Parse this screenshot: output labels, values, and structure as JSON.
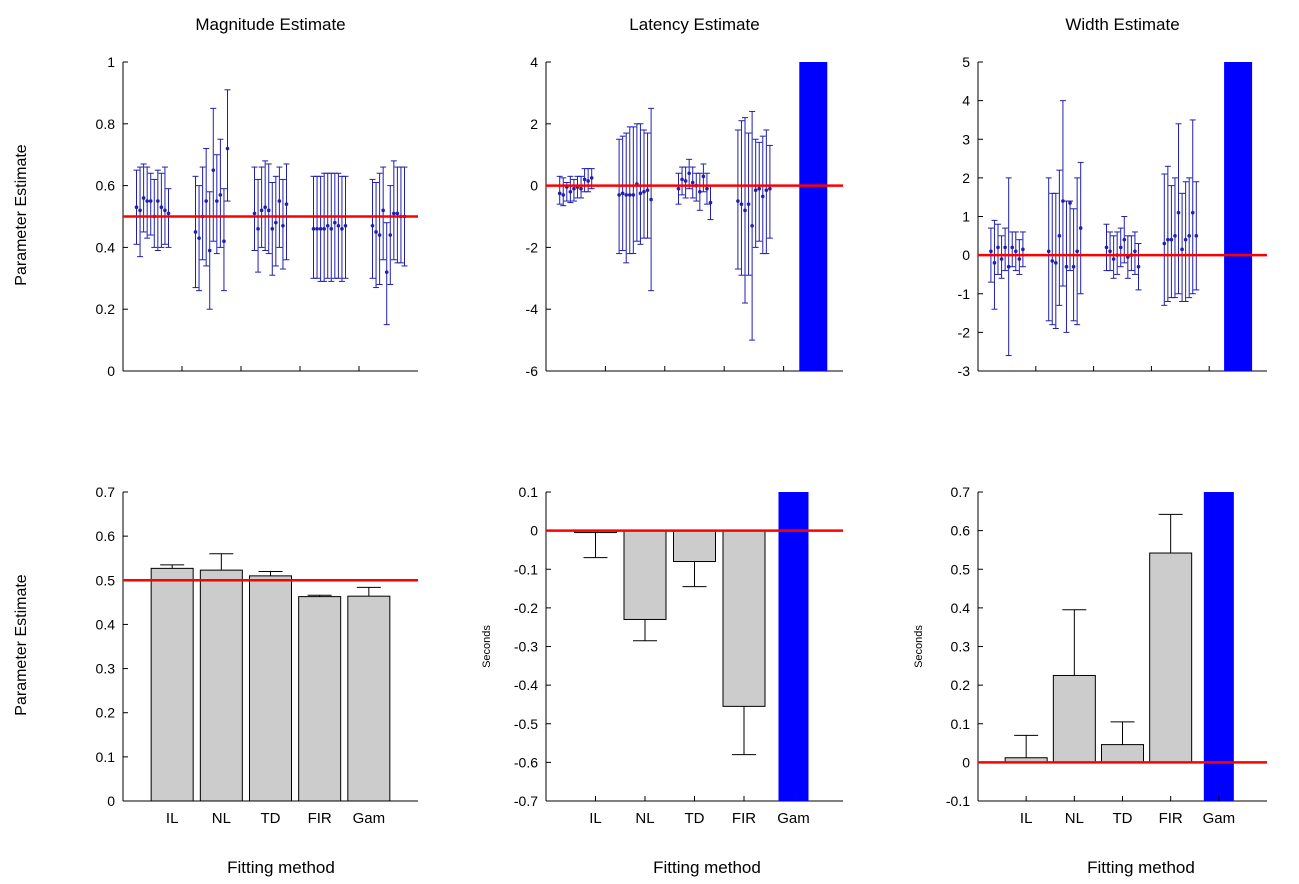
{
  "figure": {
    "row_ylabels": [
      "Parameter Estimate",
      "Parameter Estimate"
    ],
    "column_xlabels": [
      "Fitting method",
      "Fitting method",
      "Fitting method"
    ]
  },
  "colors": {
    "reference_line": "#ff0000",
    "errorbar": "#2020b0",
    "bar": "#cccccc",
    "gam_bar": "#0000ff",
    "axis": "#000000"
  },
  "chart_data": [
    {
      "type": "scatter",
      "title": "Magnitude Estimate",
      "ylim": [
        0,
        1
      ],
      "yticks": [
        0,
        0.2,
        0.4,
        0.6,
        0.8,
        1
      ],
      "ytick_labels": [
        "0",
        "0.2",
        "0.4",
        "0.6",
        "0.8",
        "1"
      ],
      "reference_y": 0.5,
      "groups": [
        {
          "center": 1,
          "points": [
            {
              "y": 0.53,
              "lo": 0.41,
              "hi": 0.65
            },
            {
              "y": 0.52,
              "lo": 0.37,
              "hi": 0.66
            },
            {
              "y": 0.56,
              "lo": 0.45,
              "hi": 0.67
            },
            {
              "y": 0.55,
              "lo": 0.43,
              "hi": 0.66
            },
            {
              "y": 0.55,
              "lo": 0.44,
              "hi": 0.64
            },
            {
              "y": 0.5,
              "lo": 0.4,
              "hi": 0.62
            },
            {
              "y": 0.55,
              "lo": 0.39,
              "hi": 0.65
            },
            {
              "y": 0.53,
              "lo": 0.4,
              "hi": 0.64
            },
            {
              "y": 0.52,
              "lo": 0.41,
              "hi": 0.66
            },
            {
              "y": 0.51,
              "lo": 0.4,
              "hi": 0.59
            }
          ]
        },
        {
          "center": 2,
          "points": [
            {
              "y": 0.45,
              "lo": 0.27,
              "hi": 0.63
            },
            {
              "y": 0.43,
              "lo": 0.26,
              "hi": 0.6
            },
            {
              "y": 0.5,
              "lo": 0.36,
              "hi": 0.66
            },
            {
              "y": 0.55,
              "lo": 0.34,
              "hi": 0.72
            },
            {
              "y": 0.39,
              "lo": 0.2,
              "hi": 0.58
            },
            {
              "y": 0.65,
              "lo": 0.42,
              "hi": 0.85
            },
            {
              "y": 0.55,
              "lo": 0.38,
              "hi": 0.7
            },
            {
              "y": 0.57,
              "lo": 0.4,
              "hi": 0.75
            },
            {
              "y": 0.42,
              "lo": 0.26,
              "hi": 0.59
            },
            {
              "y": 0.72,
              "lo": 0.55,
              "hi": 0.91
            }
          ]
        },
        {
          "center": 3,
          "points": [
            {
              "y": 0.51,
              "lo": 0.39,
              "hi": 0.66
            },
            {
              "y": 0.46,
              "lo": 0.32,
              "hi": 0.62
            },
            {
              "y": 0.52,
              "lo": 0.4,
              "hi": 0.66
            },
            {
              "y": 0.53,
              "lo": 0.39,
              "hi": 0.68
            },
            {
              "y": 0.52,
              "lo": 0.38,
              "hi": 0.67
            },
            {
              "y": 0.46,
              "lo": 0.31,
              "hi": 0.61
            },
            {
              "y": 0.48,
              "lo": 0.34,
              "hi": 0.63
            },
            {
              "y": 0.55,
              "lo": 0.4,
              "hi": 0.66
            },
            {
              "y": 0.47,
              "lo": 0.33,
              "hi": 0.62
            },
            {
              "y": 0.54,
              "lo": 0.36,
              "hi": 0.67
            }
          ]
        },
        {
          "center": 4,
          "points": [
            {
              "y": 0.46,
              "lo": 0.3,
              "hi": 0.63
            },
            {
              "y": 0.46,
              "lo": 0.3,
              "hi": 0.63
            },
            {
              "y": 0.46,
              "lo": 0.29,
              "hi": 0.63
            },
            {
              "y": 0.46,
              "lo": 0.29,
              "hi": 0.64
            },
            {
              "y": 0.47,
              "lo": 0.3,
              "hi": 0.64
            },
            {
              "y": 0.46,
              "lo": 0.29,
              "hi": 0.64
            },
            {
              "y": 0.48,
              "lo": 0.3,
              "hi": 0.64
            },
            {
              "y": 0.47,
              "lo": 0.3,
              "hi": 0.64
            },
            {
              "y": 0.46,
              "lo": 0.29,
              "hi": 0.63
            },
            {
              "y": 0.47,
              "lo": 0.3,
              "hi": 0.63
            }
          ]
        },
        {
          "center": 5,
          "points": [
            {
              "y": 0.47,
              "lo": 0.3,
              "hi": 0.62
            },
            {
              "y": 0.45,
              "lo": 0.27,
              "hi": 0.61
            },
            {
              "y": 0.44,
              "lo": 0.28,
              "hi": 0.64
            },
            {
              "y": 0.52,
              "lo": 0.36,
              "hi": 0.66
            },
            {
              "y": 0.32,
              "lo": 0.15,
              "hi": 0.48
            },
            {
              "y": 0.44,
              "lo": 0.28,
              "hi": 0.6
            },
            {
              "y": 0.51,
              "lo": 0.36,
              "hi": 0.68
            },
            {
              "y": 0.51,
              "lo": 0.35,
              "hi": 0.66
            },
            {
              "y": 0.5,
              "lo": 0.35,
              "hi": 0.66
            },
            {
              "y": 0.5,
              "lo": 0.34,
              "hi": 0.66
            }
          ]
        }
      ]
    },
    {
      "type": "scatter",
      "title": "Latency Estimate",
      "ylim": [
        -6,
        4
      ],
      "yticks": [
        -6,
        -4,
        -2,
        0,
        2,
        4
      ],
      "ytick_labels": [
        "-6",
        "-4",
        "-2",
        "0",
        "2",
        "4"
      ],
      "reference_y": 0,
      "gam_bar": {
        "from": -6,
        "to": 4
      },
      "groups": [
        {
          "center": 1,
          "points": [
            {
              "y": -0.25,
              "lo": -0.6,
              "hi": 0.3
            },
            {
              "y": -0.3,
              "lo": -0.65,
              "hi": 0.25
            },
            {
              "y": -0.05,
              "lo": -0.5,
              "hi": 0.1
            },
            {
              "y": -0.2,
              "lo": -0.55,
              "hi": 0.3
            },
            {
              "y": -0.1,
              "lo": -0.5,
              "hi": 0.2
            },
            {
              "y": -0.05,
              "lo": -0.4,
              "hi": 0.3
            },
            {
              "y": -0.1,
              "lo": -0.4,
              "hi": 0.3
            },
            {
              "y": 0.2,
              "lo": -0.2,
              "hi": 0.55
            },
            {
              "y": 0.15,
              "lo": -0.2,
              "hi": 0.55
            },
            {
              "y": 0.25,
              "lo": -0.1,
              "hi": 0.55
            }
          ]
        },
        {
          "center": 2,
          "points": [
            {
              "y": -0.3,
              "lo": -2.2,
              "hi": 1.5
            },
            {
              "y": -0.25,
              "lo": -2.1,
              "hi": 1.6
            },
            {
              "y": -0.3,
              "lo": -2.5,
              "hi": 1.7
            },
            {
              "y": -0.3,
              "lo": -2.2,
              "hi": 1.9
            },
            {
              "y": -0.3,
              "lo": -2.2,
              "hi": 1.9
            },
            {
              "y": 0.05,
              "lo": -1.8,
              "hi": 2.0
            },
            {
              "y": -0.25,
              "lo": -1.9,
              "hi": 2.0
            },
            {
              "y": -0.2,
              "lo": -1.7,
              "hi": 1.8
            },
            {
              "y": -0.15,
              "lo": -1.7,
              "hi": 1.7
            },
            {
              "y": -0.45,
              "lo": -3.4,
              "hi": 2.5
            }
          ]
        },
        {
          "center": 3,
          "points": [
            {
              "y": -0.1,
              "lo": -0.6,
              "hi": 0.4
            },
            {
              "y": 0.2,
              "lo": -0.3,
              "hi": 0.6
            },
            {
              "y": 0.15,
              "lo": -0.4,
              "hi": 0.6
            },
            {
              "y": 0.4,
              "lo": -0.1,
              "hi": 0.85
            },
            {
              "y": 0.1,
              "lo": -0.4,
              "hi": 0.6
            },
            {
              "y": 0.0,
              "lo": -0.5,
              "hi": 0.4
            },
            {
              "y": -0.2,
              "lo": -0.8,
              "hi": 0.4
            },
            {
              "y": 0.3,
              "lo": -0.2,
              "hi": 0.7
            },
            {
              "y": -0.1,
              "lo": -0.6,
              "hi": 0.4
            },
            {
              "y": -0.55,
              "lo": -1.1,
              "hi": 0.0
            }
          ]
        },
        {
          "center": 4,
          "points": [
            {
              "y": -0.5,
              "lo": -2.7,
              "hi": 1.8
            },
            {
              "y": -0.6,
              "lo": -2.9,
              "hi": 2.1
            },
            {
              "y": -0.8,
              "lo": -3.8,
              "hi": 2.2
            },
            {
              "y": -0.6,
              "lo": -2.9,
              "hi": 1.7
            },
            {
              "y": -1.3,
              "lo": -5.0,
              "hi": 2.4
            },
            {
              "y": -0.15,
              "lo": -2.0,
              "hi": 1.5
            },
            {
              "y": -0.1,
              "lo": -1.8,
              "hi": 1.4
            },
            {
              "y": -0.35,
              "lo": -2.2,
              "hi": 1.6
            },
            {
              "y": -0.15,
              "lo": -2.2,
              "hi": 1.8
            },
            {
              "y": -0.1,
              "lo": -1.7,
              "hi": 1.3
            }
          ]
        }
      ]
    },
    {
      "type": "scatter",
      "title": "Width Estimate",
      "ylim": [
        -3,
        5
      ],
      "yticks": [
        -3,
        -2,
        -1,
        0,
        1,
        2,
        3,
        4,
        5
      ],
      "ytick_labels": [
        "-3",
        "-2",
        "-1",
        "0",
        "1",
        "2",
        "3",
        "4",
        "5"
      ],
      "reference_y": 0,
      "gam_bar": {
        "from": -3,
        "to": 5
      },
      "groups": [
        {
          "center": 1,
          "points": [
            {
              "y": 0.1,
              "lo": -0.7,
              "hi": 0.7
            },
            {
              "y": -0.2,
              "lo": -1.4,
              "hi": 0.9
            },
            {
              "y": 0.2,
              "lo": -0.5,
              "hi": 0.8
            },
            {
              "y": -0.1,
              "lo": -0.6,
              "hi": 0.5
            },
            {
              "y": 0.2,
              "lo": -0.4,
              "hi": 0.7
            },
            {
              "y": -0.3,
              "lo": -2.6,
              "hi": 2.0
            },
            {
              "y": 0.2,
              "lo": -0.3,
              "hi": 0.6
            },
            {
              "y": 0.1,
              "lo": -0.4,
              "hi": 0.6
            },
            {
              "y": -0.1,
              "lo": -0.5,
              "hi": 0.4
            },
            {
              "y": 0.15,
              "lo": -0.3,
              "hi": 0.6
            }
          ]
        },
        {
          "center": 2,
          "points": [
            {
              "y": 0.1,
              "lo": -1.7,
              "hi": 2.0
            },
            {
              "y": -0.15,
              "lo": -1.8,
              "hi": 1.6
            },
            {
              "y": -0.2,
              "lo": -1.9,
              "hi": 1.6
            },
            {
              "y": 0.5,
              "lo": -1.3,
              "hi": 2.2
            },
            {
              "y": 1.4,
              "lo": -0.8,
              "hi": 4.0
            },
            {
              "y": -0.3,
              "lo": -2.0,
              "hi": 1.4
            },
            {
              "y": 1.35,
              "lo": -0.4,
              "hi": 1.4
            },
            {
              "y": -0.3,
              "lo": -1.7,
              "hi": 1.2
            },
            {
              "y": 0.1,
              "lo": -1.8,
              "hi": 2.0
            },
            {
              "y": 0.7,
              "lo": -1.0,
              "hi": 2.4
            }
          ]
        },
        {
          "center": 3,
          "points": [
            {
              "y": 0.2,
              "lo": -0.4,
              "hi": 0.8
            },
            {
              "y": 0.1,
              "lo": -0.4,
              "hi": 0.6
            },
            {
              "y": -0.1,
              "lo": -0.6,
              "hi": 0.5
            },
            {
              "y": 0.0,
              "lo": -0.5,
              "hi": 0.6
            },
            {
              "y": 0.2,
              "lo": -0.3,
              "hi": 0.7
            },
            {
              "y": 0.4,
              "lo": -0.2,
              "hi": 1.0
            },
            {
              "y": -0.05,
              "lo": -0.6,
              "hi": 0.5
            },
            {
              "y": 0.0,
              "lo": -0.4,
              "hi": 0.5
            },
            {
              "y": 0.1,
              "lo": -0.5,
              "hi": 0.6
            },
            {
              "y": -0.3,
              "lo": -0.9,
              "hi": 0.3
            }
          ]
        },
        {
          "center": 4,
          "points": [
            {
              "y": 0.3,
              "lo": -1.3,
              "hi": 2.1
            },
            {
              "y": 0.4,
              "lo": -1.2,
              "hi": 2.3
            },
            {
              "y": 0.4,
              "lo": -1.1,
              "hi": 1.8
            },
            {
              "y": 0.5,
              "lo": -1.1,
              "hi": 2.0
            },
            {
              "y": 1.1,
              "lo": -1.0,
              "hi": 3.4
            },
            {
              "y": 0.15,
              "lo": -1.2,
              "hi": 1.6
            },
            {
              "y": 0.4,
              "lo": -1.2,
              "hi": 1.9
            },
            {
              "y": 0.5,
              "lo": -1.1,
              "hi": 2.0
            },
            {
              "y": 1.1,
              "lo": -1.0,
              "hi": 3.5
            },
            {
              "y": 0.5,
              "lo": -0.9,
              "hi": 1.9
            }
          ]
        }
      ]
    },
    {
      "type": "bar",
      "title": "",
      "ylabel": "",
      "xlabel": "Fitting method",
      "categories": [
        "IL",
        "NL",
        "TD",
        "FIR",
        "Gam"
      ],
      "values": [
        0.527,
        0.523,
        0.51,
        0.463,
        0.464
      ],
      "error_upper": [
        0.535,
        0.56,
        0.52,
        0.466,
        0.484
      ],
      "ylim": [
        0,
        0.7
      ],
      "yticks": [
        0,
        0.1,
        0.2,
        0.3,
        0.4,
        0.5,
        0.6,
        0.7
      ],
      "ytick_labels": [
        "0",
        "0.1",
        "0.2",
        "0.3",
        "0.4",
        "0.5",
        "0.6",
        "0.7"
      ],
      "reference_y": 0.5
    },
    {
      "type": "bar",
      "title": "",
      "ylabel": "Seconds",
      "xlabel": "Fitting method",
      "categories": [
        "IL",
        "NL",
        "TD",
        "FIR",
        "Gam"
      ],
      "values": [
        -0.005,
        -0.23,
        -0.08,
        -0.455,
        null
      ],
      "error_lower": [
        -0.07,
        -0.285,
        -0.145,
        -0.58,
        null
      ],
      "gam_bar": {
        "from": -0.7,
        "to": 0.1
      },
      "ylim": [
        -0.7,
        0.1
      ],
      "yticks": [
        -0.7,
        -0.6,
        -0.5,
        -0.4,
        -0.3,
        -0.2,
        -0.1,
        0,
        0.1
      ],
      "ytick_labels": [
        "-0.7",
        "-0.6",
        "-0.5",
        "-0.4",
        "-0.3",
        "-0.2",
        "-0.1",
        "0",
        "0.1"
      ],
      "reference_y": 0
    },
    {
      "type": "bar",
      "title": "",
      "ylabel": "Seconds",
      "xlabel": "Fitting method",
      "categories": [
        "IL",
        "NL",
        "TD",
        "FIR",
        "Gam"
      ],
      "values": [
        0.012,
        0.225,
        0.046,
        0.542,
        null
      ],
      "error_upper": [
        0.07,
        0.395,
        0.105,
        0.642,
        null
      ],
      "gam_bar": {
        "from": -0.1,
        "to": 0.7
      },
      "ylim": [
        -0.1,
        0.7
      ],
      "yticks": [
        -0.1,
        0,
        0.1,
        0.2,
        0.3,
        0.4,
        0.5,
        0.6,
        0.7
      ],
      "ytick_labels": [
        "-0.1",
        "0",
        "0.1",
        "0.2",
        "0.3",
        "0.4",
        "0.5",
        "0.6",
        "0.7"
      ],
      "reference_y": 0
    }
  ]
}
